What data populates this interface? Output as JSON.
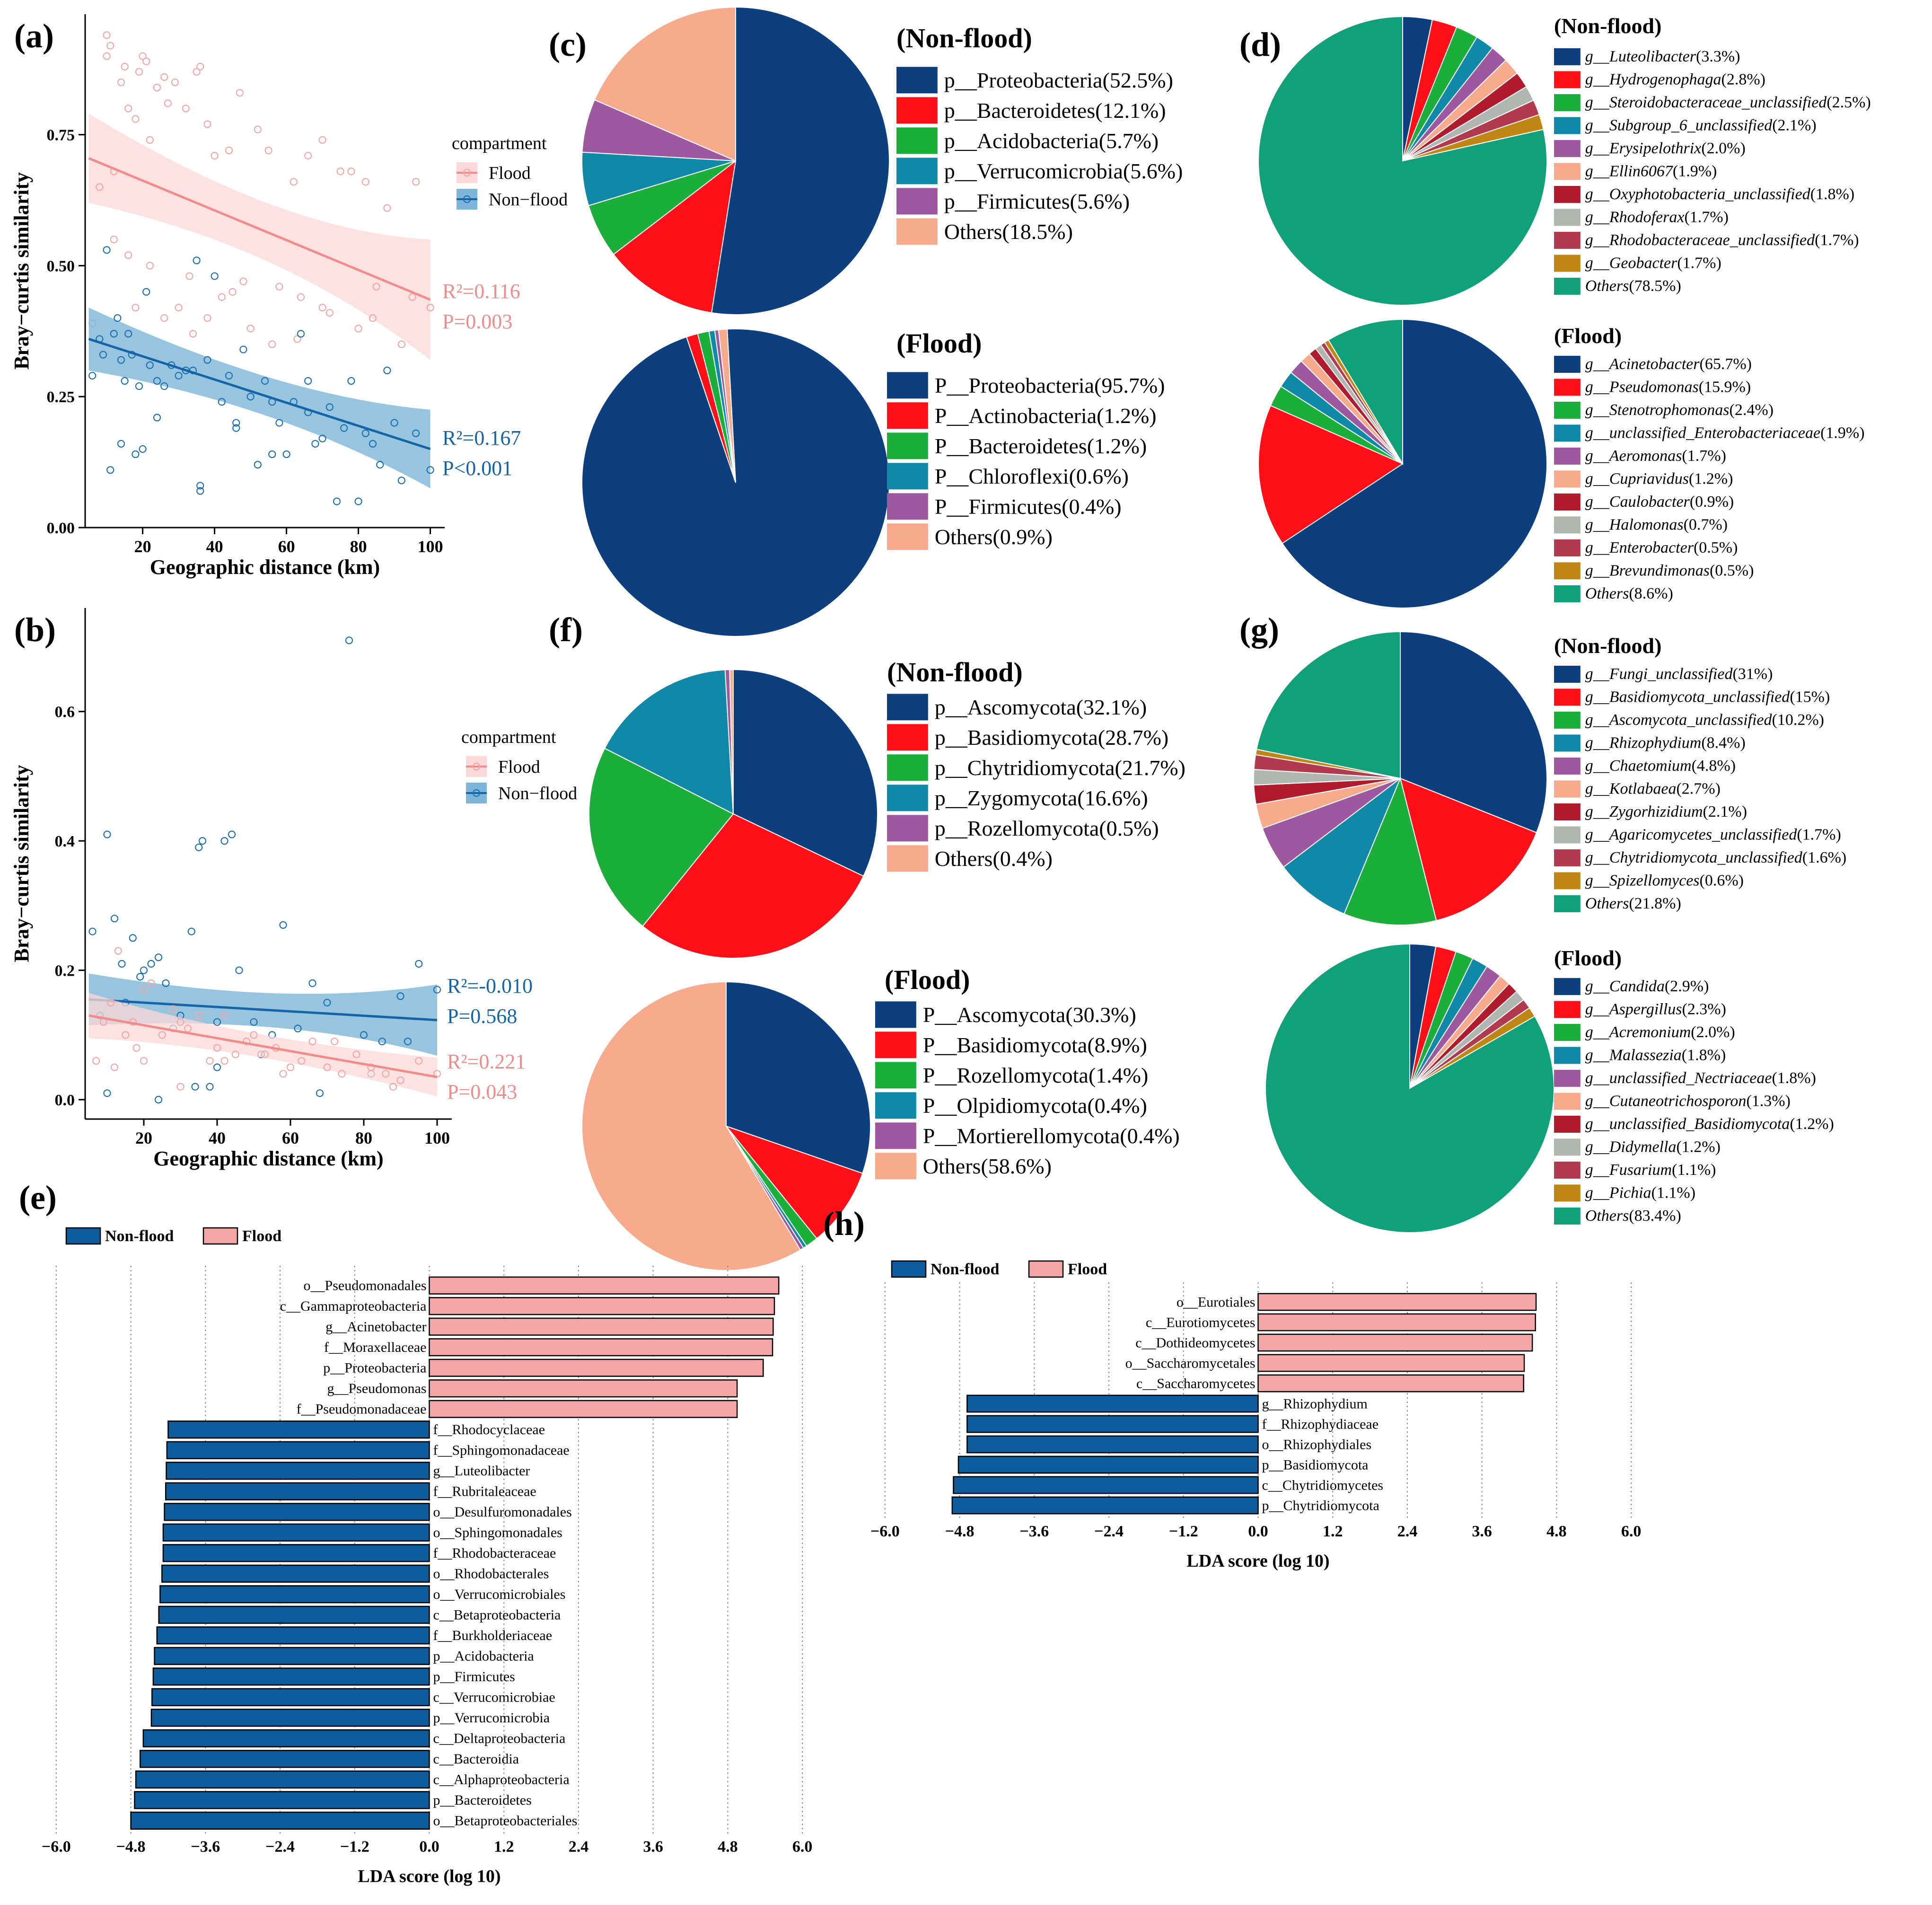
{
  "colors": {
    "flood": "#F4A6A6",
    "flood_band": "#FDD8D8",
    "flood_line": "#F08C8C",
    "nonflood": "#1D6FAE",
    "nonflood_band": "#7DB6D8",
    "nonflood_line": "#1664A8",
    "lda_nonflood": "#0F5C9C",
    "lda_flood": "#F4A6A6",
    "palette": [
      "#0D3F7E",
      "#FF0F17",
      "#1CAE3B",
      "#1088A8",
      "#9D58A0",
      "#F8AA8D",
      "#B01C2E",
      "#B1B6B3",
      "#B13A4E",
      "#BF8613",
      "#10A07A"
    ]
  },
  "chart_data": [
    {
      "id": "a",
      "type": "scatter",
      "panel_label": "(a)",
      "title": "",
      "xlabel": "Geographic distance (km)",
      "ylabel": "Bray−curtis similarity",
      "xlim": [
        4,
        104
      ],
      "ylim": [
        0,
        0.98
      ],
      "x_ticks": [
        20,
        40,
        60,
        80,
        100
      ],
      "x_tick_labels": [
        "20",
        "40",
        "60",
        "80",
        "100"
      ],
      "y_ticks": [
        0,
        0.25,
        0.5,
        0.75
      ],
      "y_tick_labels": [
        "0.00",
        "0.25",
        "0.50",
        "0.75"
      ],
      "legend": {
        "title": "compartment",
        "entries": [
          "Flood",
          "Non−flood"
        ],
        "placement": "right"
      },
      "series": [
        {
          "name": "Flood",
          "color_key": "flood",
          "fit": {
            "x": [
              5,
              100
            ],
            "y": [
              0.705,
              0.435
            ],
            "ci_width": [
              0.085,
              0.115
            ]
          },
          "annotation": [
            "R²=0.116",
            "P=0.003"
          ],
          "x": [
            8,
            10,
            10,
            11,
            12,
            14,
            15,
            16,
            18,
            19,
            20,
            21,
            22,
            24,
            26,
            27,
            29,
            32,
            35,
            36,
            38,
            40,
            44,
            47,
            52,
            55,
            62,
            66,
            70,
            75,
            78,
            82,
            88,
            96,
            100,
            12,
            16,
            22,
            30,
            33,
            38,
            45,
            50,
            58,
            64,
            70,
            80,
            85,
            92,
            6,
            18,
            26,
            34,
            42,
            48,
            56,
            63,
            72,
            84,
            95
          ],
          "y": [
            0.65,
            0.9,
            0.94,
            0.92,
            0.68,
            0.85,
            0.88,
            0.8,
            0.78,
            0.87,
            0.9,
            0.89,
            0.74,
            0.84,
            0.86,
            0.81,
            0.85,
            0.8,
            0.87,
            0.88,
            0.77,
            0.71,
            0.72,
            0.83,
            0.76,
            0.72,
            0.66,
            0.71,
            0.74,
            0.68,
            0.68,
            0.66,
            0.61,
            0.66,
            0.42,
            0.55,
            0.52,
            0.5,
            0.42,
            0.48,
            0.4,
            0.45,
            0.38,
            0.46,
            0.44,
            0.42,
            0.38,
            0.46,
            0.35,
            0.39,
            0.42,
            0.4,
            0.37,
            0.44,
            0.47,
            0.35,
            0.36,
            0.41,
            0.4,
            0.44
          ]
        },
        {
          "name": "Non−flood",
          "color_key": "nonflood",
          "fit": {
            "x": [
              5,
              100
            ],
            "y": [
              0.36,
              0.15
            ],
            "ci_width": [
              0.06,
              0.075
            ]
          },
          "annotation": [
            "R²=0.167",
            "P<0.001"
          ],
          "x": [
            6,
            8,
            9,
            10,
            11,
            12,
            13,
            14,
            15,
            16,
            17,
            18,
            19,
            20,
            21,
            22,
            24,
            26,
            28,
            30,
            32,
            34,
            35,
            36,
            38,
            40,
            42,
            44,
            46,
            48,
            50,
            52,
            54,
            56,
            58,
            60,
            62,
            64,
            66,
            68,
            70,
            72,
            74,
            76,
            78,
            80,
            82,
            84,
            86,
            88,
            90,
            92,
            96,
            100,
            14,
            24,
            36,
            46,
            56,
            66
          ],
          "y": [
            0.29,
            0.36,
            0.33,
            0.53,
            0.11,
            0.37,
            0.4,
            0.16,
            0.28,
            0.37,
            0.33,
            0.14,
            0.27,
            0.15,
            0.45,
            0.31,
            0.28,
            0.27,
            0.31,
            0.29,
            0.3,
            0.3,
            0.51,
            0.07,
            0.32,
            0.48,
            0.24,
            0.29,
            0.2,
            0.34,
            0.25,
            0.12,
            0.28,
            0.24,
            0.2,
            0.14,
            0.24,
            0.37,
            0.28,
            0.16,
            0.17,
            0.23,
            0.05,
            0.19,
            0.28,
            0.05,
            0.18,
            0.16,
            0.12,
            0.3,
            0.2,
            0.09,
            0.18,
            0.11,
            0.32,
            0.21,
            0.08,
            0.19,
            0.14,
            0.22
          ]
        }
      ]
    },
    {
      "id": "b",
      "type": "scatter",
      "panel_label": "(b)",
      "title": "",
      "xlabel": "Geographic distance (km)",
      "ylabel": "Bray−curtis similarity",
      "xlim": [
        4,
        104
      ],
      "ylim": [
        -0.03,
        0.76
      ],
      "x_ticks": [
        20,
        40,
        60,
        80,
        100
      ],
      "x_tick_labels": [
        "20",
        "40",
        "60",
        "80",
        "100"
      ],
      "y_ticks": [
        0,
        0.2,
        0.4,
        0.6
      ],
      "y_tick_labels": [
        "0.0",
        "0.2",
        "0.4",
        "0.6"
      ],
      "legend": {
        "title": "compartment",
        "entries": [
          "Flood",
          "Non−flood"
        ],
        "placement": "right"
      },
      "series": [
        {
          "name": "Non−flood",
          "color_key": "nonflood",
          "fit": {
            "x": [
              5,
              100
            ],
            "y": [
              0.155,
              0.123
            ],
            "ci_width": [
              0.04,
              0.055
            ]
          },
          "annotation": [
            "R²=-0.010",
            "P=0.568"
          ],
          "x": [
            6,
            8,
            10,
            12,
            14,
            15,
            17,
            19,
            20,
            22,
            24,
            26,
            28,
            30,
            33,
            35,
            36,
            38,
            40,
            42,
            44,
            46,
            50,
            55,
            58,
            62,
            66,
            70,
            76,
            80,
            85,
            90,
            95,
            100,
            10,
            24,
            34,
            40,
            52,
            68,
            82,
            92
          ],
          "y": [
            0.26,
            0.13,
            0.41,
            0.28,
            0.21,
            0.15,
            0.25,
            0.19,
            0.2,
            0.21,
            0.22,
            0.18,
            0.11,
            0.13,
            0.26,
            0.39,
            0.4,
            0.02,
            0.12,
            0.4,
            0.41,
            0.2,
            0.12,
            0.1,
            0.27,
            0.11,
            0.18,
            0.15,
            0.71,
            0.1,
            0.09,
            0.16,
            0.21,
            0.17,
            0.01,
            0.0,
            0.02,
            0.05,
            0.07,
            0.01,
            0.04,
            0.09
          ]
        },
        {
          "name": "Flood",
          "color_key": "flood",
          "fit": {
            "x": [
              5,
              100
            ],
            "y": [
              0.13,
              0.035
            ],
            "ci_width": [
              0.035,
              0.03
            ]
          },
          "annotation": [
            "R²=0.221",
            "P=0.043"
          ],
          "x": [
            7,
            9,
            11,
            13,
            15,
            17,
            18,
            20,
            22,
            25,
            28,
            30,
            32,
            35,
            38,
            40,
            42,
            45,
            48,
            50,
            53,
            56,
            60,
            63,
            66,
            70,
            74,
            78,
            82,
            86,
            90,
            95,
            100,
            12,
            20,
            30,
            42,
            58,
            72,
            88
          ],
          "y": [
            0.06,
            0.12,
            0.15,
            0.23,
            0.1,
            0.12,
            0.08,
            0.06,
            0.18,
            0.1,
            0.14,
            0.12,
            0.11,
            0.13,
            0.06,
            0.08,
            0.13,
            0.07,
            0.09,
            0.1,
            0.07,
            0.08,
            0.05,
            0.06,
            0.09,
            0.05,
            0.04,
            0.07,
            0.05,
            0.04,
            0.03,
            0.06,
            0.04,
            0.05,
            0.17,
            0.02,
            0.06,
            0.04,
            0.09,
            0.02
          ]
        }
      ]
    },
    {
      "id": "c1",
      "type": "pie",
      "panel_label": "(c)",
      "title": "(Non-flood)",
      "labels": [
        "p__Proteobacteria(52.5%)",
        "p__Bacteroidetes(12.1%)",
        "p__Acidobacteria(5.7%)",
        "p__Verrucomicrobia(5.6%)",
        "p__Firmicutes(5.6%)",
        "Others(18.5%)"
      ],
      "values": [
        52.5,
        12.1,
        5.7,
        5.6,
        5.6,
        18.5
      ],
      "color_idx": [
        0,
        1,
        2,
        3,
        4,
        5
      ]
    },
    {
      "id": "c2",
      "type": "pie",
      "title": "(Flood)",
      "labels": [
        "P__Proteobacteria(95.7%)",
        "P__Actinobacteria(1.2%)",
        "P__Bacteroidetes(1.2%)",
        "P__Chloroflexi(0.6%)",
        "P__Firmicutes(0.4%)",
        "Others(0.9%)"
      ],
      "values": [
        95.7,
        1.2,
        1.2,
        0.6,
        0.4,
        0.9
      ],
      "color_idx": [
        0,
        1,
        2,
        3,
        4,
        5
      ]
    },
    {
      "id": "d1",
      "type": "pie",
      "panel_label": "(d)",
      "title": "(Non-flood)",
      "labels": [
        "g__Luteolibacter(3.3%)",
        "g__Hydrogenophaga(2.8%)",
        "g__Steroidobacteraceae_unclassified(2.5%)",
        "g__Subgroup_6_unclassified(2.1%)",
        "g__Erysipelothrix(2.0%)",
        "g__Ellin6067(1.9%)",
        "g__Oxyphotobacteria_unclassified(1.8%)",
        "g__Rhodoferax(1.7%)",
        "g__Rhodobacteraceae_unclassified(1.7%)",
        "g__Geobacter(1.7%)",
        "Others(78.5%)"
      ],
      "values": [
        3.3,
        2.8,
        2.5,
        2.1,
        2.0,
        1.9,
        1.8,
        1.7,
        1.7,
        1.7,
        78.5
      ],
      "color_idx": [
        0,
        1,
        2,
        3,
        4,
        5,
        6,
        7,
        8,
        9,
        10
      ]
    },
    {
      "id": "d2",
      "type": "pie",
      "title": "(Flood)",
      "labels": [
        "g__Acinetobacter(65.7%)",
        "g__Pseudomonas(15.9%)",
        "g__Stenotrophomonas(2.4%)",
        "g__unclassified_Enterobacteriaceae(1.9%)",
        "g__Aeromonas(1.7%)",
        "g__Cupriavidus(1.2%)",
        "g__Caulobacter(0.9%)",
        "g__Halomonas(0.7%)",
        "g__Enterobacter(0.5%)",
        "g__Brevundimonas(0.5%)",
        "Others(8.6%)"
      ],
      "values": [
        65.7,
        15.9,
        2.4,
        1.9,
        1.7,
        1.2,
        0.9,
        0.7,
        0.5,
        0.5,
        8.6
      ],
      "color_idx": [
        0,
        1,
        2,
        3,
        4,
        5,
        6,
        7,
        8,
        9,
        10
      ]
    },
    {
      "id": "f1",
      "type": "pie",
      "panel_label": "(f)",
      "title": "(Non-flood)",
      "labels": [
        "p__Ascomycota(32.1%)",
        "p__Basidiomycota(28.7%)",
        "p__Chytridiomycota(21.7%)",
        "p__Zygomycota(16.6%)",
        "p__Rozellomycota(0.5%)",
        "Others(0.4%)"
      ],
      "values": [
        32.1,
        28.7,
        21.7,
        16.6,
        0.5,
        0.4
      ],
      "color_idx": [
        0,
        1,
        2,
        3,
        4,
        5
      ]
    },
    {
      "id": "f2",
      "type": "pie",
      "title": "(Flood)",
      "labels": [
        "P__Ascomycota(30.3%)",
        "P__Basidiomycota(8.9%)",
        "P__Rozellomycota(1.4%)",
        "P__Olpidiomycota(0.4%)",
        "P__Mortierellomycota(0.4%)",
        "Others(58.6%)"
      ],
      "values": [
        30.3,
        8.9,
        1.4,
        0.4,
        0.4,
        58.6
      ],
      "color_idx": [
        0,
        1,
        2,
        3,
        4,
        5
      ]
    },
    {
      "id": "g1",
      "type": "pie",
      "panel_label": "(g)",
      "title": "(Non-flood)",
      "labels": [
        "g__Fungi_unclassified(31%)",
        "g__Basidiomycota_unclassified(15%)",
        "g__Ascomycota_unclassified(10.2%)",
        "g__Rhizophydium(8.4%)",
        "g__Chaetomium(4.8%)",
        "g__Kotlabaea(2.7%)",
        "g__Zygorhizidium(2.1%)",
        "g__Agaricomycetes_unclassified(1.7%)",
        "g__Chytridiomycota_unclassified(1.6%)",
        "g__Spizellomyces(0.6%)",
        "Others(21.8%)"
      ],
      "values": [
        31,
        15,
        10.2,
        8.4,
        4.8,
        2.7,
        2.1,
        1.7,
        1.6,
        0.6,
        21.8
      ],
      "color_idx": [
        0,
        1,
        2,
        3,
        4,
        5,
        6,
        7,
        8,
        9,
        10
      ]
    },
    {
      "id": "g2",
      "type": "pie",
      "title": "(Flood)",
      "labels": [
        "g__Candida(2.9%)",
        "g__Aspergillus(2.3%)",
        "g__Acremonium(2.0%)",
        "g__Malassezia(1.8%)",
        "g__unclassified_Nectriaceae(1.8%)",
        "g__Cutaneotrichosporon(1.3%)",
        "g__unclassified_Basidiomycota(1.2%)",
        "g__Didymella(1.2%)",
        "g__Fusarium(1.1%)",
        "g__Pichia(1.1%)",
        "Others(83.4%)"
      ],
      "values": [
        2.9,
        2.3,
        2.0,
        1.8,
        1.8,
        1.3,
        1.2,
        1.2,
        1.1,
        1.1,
        83.4
      ],
      "color_idx": [
        0,
        1,
        2,
        3,
        4,
        5,
        6,
        7,
        8,
        9,
        10
      ]
    },
    {
      "id": "e",
      "type": "bar",
      "orientation": "horizontal",
      "panel_label": "(e)",
      "title": "",
      "xlabel": "LDA score (log 10)",
      "ylabel": "",
      "xlim": [
        -6.6,
        6.6
      ],
      "x_ticks": [
        -6.0,
        -4.8,
        -3.6,
        -2.4,
        -1.2,
        0.0,
        1.2,
        2.4,
        3.6,
        4.8,
        6.0
      ],
      "x_tick_labels": [
        "−6.0",
        "−4.8",
        "−3.6",
        "−2.4",
        "−1.2",
        "0.0",
        "1.2",
        "2.4",
        "3.6",
        "4.8",
        "6.0"
      ],
      "legend": [
        "Non-flood",
        "Flood"
      ],
      "categories": [
        "o__Pseudomonadales",
        "c__Gammaproteobacteria",
        "g__Acinetobacter",
        "f__Moraxellaceae",
        "p__Proteobacteria",
        "g__Pseudomonas",
        "f__Pseudomonadaceae",
        "f__Rhodocyclaceae",
        "f__Sphingomonadaceae",
        "g__Luteolibacter",
        "f__Rubritaleaceae",
        "o__Desulfuromonadales",
        "o__Sphingomonadales",
        "f__Rhodobacteraceae",
        "o__Rhodobacterales",
        "o__Verrucomicrobiales",
        "c__Betaproteobacteria",
        "f__Burkholderiaceae",
        "p__Acidobacteria",
        "p__Firmicutes",
        "c__Verrucomicrobiae",
        "p__Verrucomicrobia",
        "c__Deltaproteobacteria",
        "c__Bacteroidia",
        "c__Alphaproteobacteria",
        "p__Bacteroidetes",
        "o__Betaproteobacteriales"
      ],
      "values": [
        5.62,
        5.55,
        5.53,
        5.52,
        5.37,
        4.95,
        4.95,
        -4.2,
        -4.22,
        -4.23,
        -4.24,
        -4.26,
        -4.28,
        -4.28,
        -4.3,
        -4.33,
        -4.35,
        -4.38,
        -4.42,
        -4.44,
        -4.46,
        -4.47,
        -4.6,
        -4.65,
        -4.72,
        -4.74,
        -4.8
      ]
    },
    {
      "id": "h",
      "type": "bar",
      "orientation": "horizontal",
      "panel_label": "(h)",
      "title": "",
      "xlabel": "LDA score (log 10)",
      "ylabel": "",
      "xlim": [
        -6.6,
        6.6
      ],
      "x_ticks": [
        -6.0,
        -4.8,
        -3.6,
        -2.4,
        -1.2,
        0.0,
        1.2,
        2.4,
        3.6,
        4.8,
        6.0
      ],
      "x_tick_labels": [
        "−6.0",
        "−4.8",
        "−3.6",
        "−2.4",
        "−1.2",
        "0.0",
        "1.2",
        "2.4",
        "3.6",
        "4.8",
        "6.0"
      ],
      "legend": [
        "Non-flood",
        "Flood"
      ],
      "categories": [
        "o__Eurotiales",
        "c__Eurotiomycetes",
        "c__Dothideomycetes",
        "o__Saccharomycetales",
        "c__Saccharomycetes",
        "g__Rhizophydium",
        "f__Rhizophydiaceae",
        "o__Rhizophydiales",
        "p__Basidiomycota",
        "c__Chytridiomycetes",
        "p__Chytridiomycota"
      ],
      "values": [
        4.47,
        4.46,
        4.41,
        4.28,
        4.27,
        -4.68,
        -4.68,
        -4.68,
        -4.82,
        -4.9,
        -4.92
      ]
    }
  ]
}
